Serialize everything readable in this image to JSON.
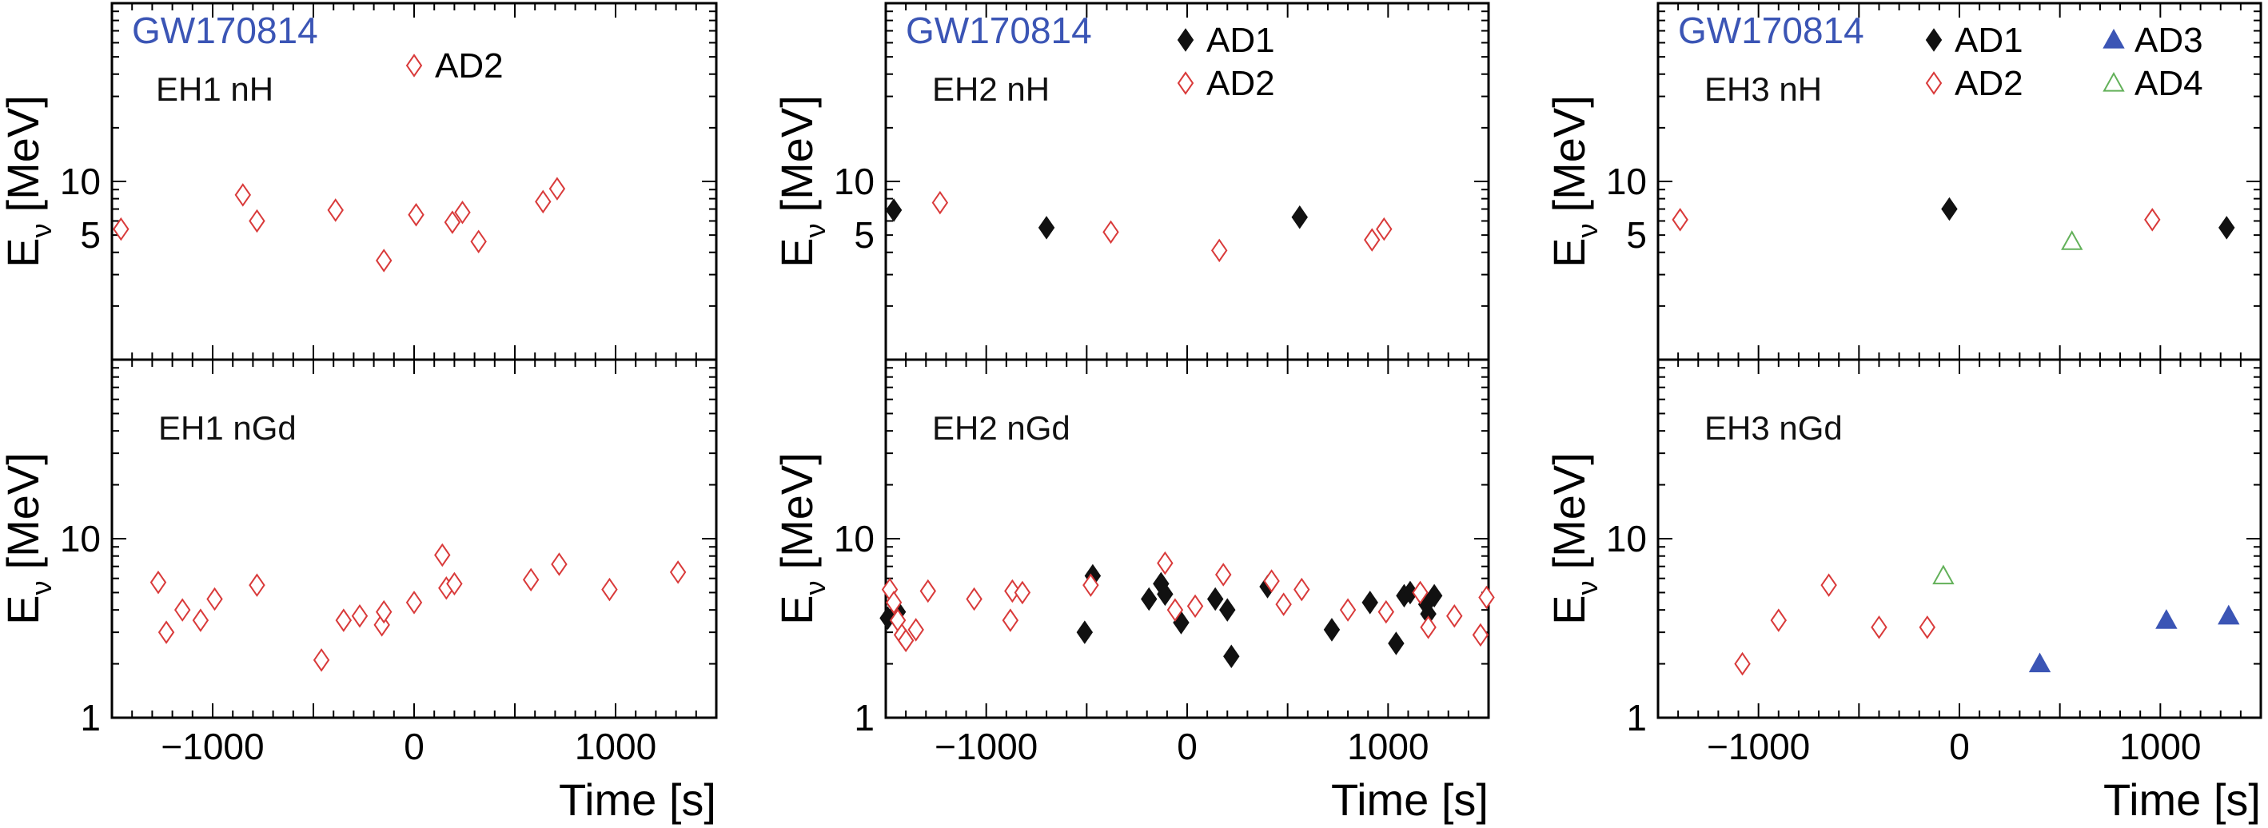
{
  "figure": {
    "ylabel": "E",
    "ylabel_sub": "ν",
    "ylabel_unit": "[MeV]",
    "xlabel": "Time [s]"
  },
  "legend": {
    "AD1": {
      "label": "AD1",
      "marker": "diamond",
      "filled": true,
      "color": "#111111"
    },
    "AD2": {
      "label": "AD2",
      "marker": "diamond",
      "filled": false,
      "color": "#d93a3a"
    },
    "AD3": {
      "label": "AD3",
      "marker": "triangle",
      "filled": true,
      "color": "#3b55b5"
    },
    "AD4": {
      "label": "AD4",
      "marker": "triangle",
      "filled": false,
      "color": "#63b15a"
    }
  },
  "chart_data": [
    {
      "type": "scatter",
      "label": "EH1 nH",
      "event": "GW170814",
      "legend_entries": [
        "AD2"
      ],
      "xlim": [
        -1500,
        1500
      ],
      "ylim": [
        1,
        100
      ],
      "y_scale": "log",
      "yticks": [
        5,
        10
      ],
      "xticks": [
        -1000,
        0,
        1000
      ],
      "show_xtick_labels": false,
      "series": [
        {
          "name": "AD2",
          "points": [
            [
              -1455,
              5.4
            ],
            [
              -850,
              8.4
            ],
            [
              -780,
              6.0
            ],
            [
              -390,
              6.9
            ],
            [
              -150,
              3.6
            ],
            [
              10,
              6.5
            ],
            [
              190,
              5.9
            ],
            [
              240,
              6.7
            ],
            [
              320,
              4.6
            ],
            [
              640,
              7.7
            ],
            [
              710,
              9.1
            ]
          ]
        }
      ]
    },
    {
      "type": "scatter",
      "label": "EH1 nGd",
      "legend_entries": [],
      "xlim": [
        -1500,
        1500
      ],
      "ylim": [
        1,
        100
      ],
      "y_scale": "log",
      "yticks": [
        1,
        10
      ],
      "xticks": [
        -1000,
        0,
        1000
      ],
      "show_xtick_labels": true,
      "series": [
        {
          "name": "AD2",
          "points": [
            [
              -1270,
              5.7
            ],
            [
              -1230,
              3.0
            ],
            [
              -1150,
              4.0
            ],
            [
              -1060,
              3.5
            ],
            [
              -990,
              4.6
            ],
            [
              -780,
              5.5
            ],
            [
              -460,
              2.1
            ],
            [
              -350,
              3.5
            ],
            [
              -270,
              3.7
            ],
            [
              -160,
              3.3
            ],
            [
              -150,
              3.9
            ],
            [
              0,
              4.4
            ],
            [
              140,
              8.1
            ],
            [
              160,
              5.3
            ],
            [
              200,
              5.6
            ],
            [
              580,
              5.9
            ],
            [
              720,
              7.2
            ],
            [
              970,
              5.2
            ],
            [
              1310,
              6.5
            ]
          ]
        }
      ]
    },
    {
      "type": "scatter",
      "label": "EH2 nH",
      "event": "GW170814",
      "legend_entries": [
        "AD1",
        "AD2"
      ],
      "xlim": [
        -1500,
        1500
      ],
      "ylim": [
        1,
        100
      ],
      "y_scale": "log",
      "yticks": [
        5,
        10
      ],
      "xticks": [
        -1000,
        0,
        1000
      ],
      "show_xtick_labels": false,
      "series": [
        {
          "name": "AD1",
          "points": [
            [
              -1460,
              6.9
            ],
            [
              -700,
              5.5
            ],
            [
              560,
              6.3
            ]
          ]
        },
        {
          "name": "AD2",
          "points": [
            [
              -1230,
              7.6
            ],
            [
              -380,
              5.2
            ],
            [
              160,
              4.1
            ],
            [
              920,
              4.7
            ],
            [
              980,
              5.4
            ]
          ]
        }
      ]
    },
    {
      "type": "scatter",
      "label": "EH2 nGd",
      "legend_entries": [],
      "xlim": [
        -1500,
        1500
      ],
      "ylim": [
        1,
        100
      ],
      "y_scale": "log",
      "yticks": [
        1,
        10
      ],
      "xticks": [
        -1000,
        0,
        1000
      ],
      "show_xtick_labels": true,
      "series": [
        {
          "name": "AD1",
          "points": [
            [
              -1490,
              3.6
            ],
            [
              -1440,
              3.9
            ],
            [
              -510,
              3.0
            ],
            [
              -470,
              6.2
            ],
            [
              -190,
              4.6
            ],
            [
              -130,
              5.6
            ],
            [
              -110,
              4.9
            ],
            [
              -30,
              3.4
            ],
            [
              140,
              4.6
            ],
            [
              200,
              4.0
            ],
            [
              220,
              2.2
            ],
            [
              400,
              5.4
            ],
            [
              720,
              3.1
            ],
            [
              910,
              4.4
            ],
            [
              1040,
              2.6
            ],
            [
              1080,
              4.8
            ],
            [
              1110,
              5.0
            ],
            [
              1190,
              4.3
            ],
            [
              1200,
              3.8
            ],
            [
              1230,
              4.8
            ]
          ]
        },
        {
          "name": "AD2",
          "points": [
            [
              -1480,
              5.2
            ],
            [
              -1460,
              4.4
            ],
            [
              -1440,
              3.5
            ],
            [
              -1420,
              2.9
            ],
            [
              -1400,
              2.7
            ],
            [
              -1350,
              3.1
            ],
            [
              -1290,
              5.1
            ],
            [
              -1060,
              4.6
            ],
            [
              -880,
              3.5
            ],
            [
              -870,
              5.1
            ],
            [
              -820,
              5.0
            ],
            [
              -480,
              5.5
            ],
            [
              -110,
              7.3
            ],
            [
              -60,
              4.0
            ],
            [
              40,
              4.2
            ],
            [
              180,
              6.3
            ],
            [
              420,
              5.8
            ],
            [
              480,
              4.3
            ],
            [
              570,
              5.2
            ],
            [
              800,
              4.0
            ],
            [
              990,
              3.9
            ],
            [
              1160,
              5.0
            ],
            [
              1200,
              3.2
            ],
            [
              1330,
              3.7
            ],
            [
              1460,
              2.9
            ],
            [
              1490,
              4.7
            ]
          ]
        }
      ]
    },
    {
      "type": "scatter",
      "label": "EH3 nH",
      "event": "GW170814",
      "legend_entries": [
        "AD1",
        "AD2",
        "AD3",
        "AD4"
      ],
      "xlim": [
        -1500,
        1500
      ],
      "ylim": [
        1,
        100
      ],
      "y_scale": "log",
      "yticks": [
        5,
        10
      ],
      "xticks": [
        -1000,
        0,
        1000
      ],
      "show_xtick_labels": false,
      "series": [
        {
          "name": "AD1",
          "points": [
            [
              -50,
              7.0
            ],
            [
              1330,
              5.5
            ]
          ]
        },
        {
          "name": "AD2",
          "points": [
            [
              -1390,
              6.1
            ],
            [
              960,
              6.1
            ]
          ]
        },
        {
          "name": "AD3",
          "points": []
        },
        {
          "name": "AD4",
          "points": [
            [
              560,
              4.6
            ]
          ]
        }
      ]
    },
    {
      "type": "scatter",
      "label": "EH3 nGd",
      "legend_entries": [],
      "xlim": [
        -1500,
        1500
      ],
      "ylim": [
        1,
        100
      ],
      "y_scale": "log",
      "yticks": [
        1,
        10
      ],
      "xticks": [
        -1000,
        0,
        1000
      ],
      "show_xtick_labels": true,
      "series": [
        {
          "name": "AD2",
          "points": [
            [
              -1080,
              2.0
            ],
            [
              -900,
              3.5
            ],
            [
              -650,
              5.5
            ],
            [
              -400,
              3.2
            ],
            [
              -160,
              3.2
            ]
          ]
        },
        {
          "name": "AD3",
          "points": [
            [
              400,
              2.0
            ],
            [
              1030,
              3.5
            ],
            [
              1340,
              3.7
            ]
          ]
        },
        {
          "name": "AD4",
          "points": [
            [
              -80,
              6.2
            ]
          ]
        }
      ]
    }
  ]
}
